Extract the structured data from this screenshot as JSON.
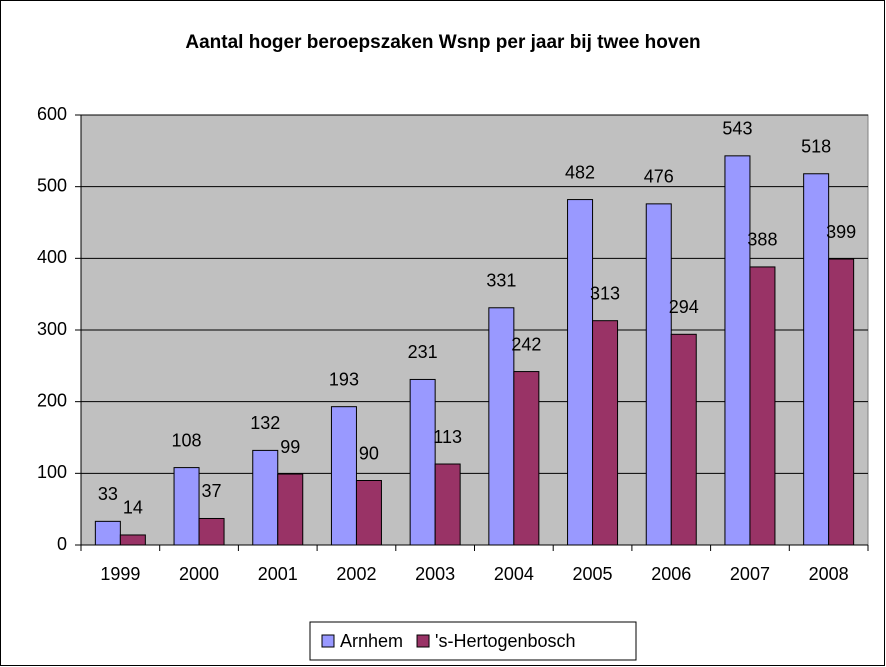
{
  "chart_data": {
    "type": "bar",
    "title": "Aantal hoger beroepszaken Wsnp per jaar bij twee hoven",
    "categories": [
      "1999",
      "2000",
      "2001",
      "2002",
      "2003",
      "2004",
      "2005",
      "2006",
      "2007",
      "2008"
    ],
    "series": [
      {
        "name": "Arnhem",
        "color": "#9999ff",
        "values": [
          33,
          108,
          132,
          193,
          231,
          331,
          482,
          476,
          543,
          518
        ]
      },
      {
        "name": "'s-Hertogenbosch",
        "color": "#993366",
        "values": [
          14,
          37,
          99,
          90,
          113,
          242,
          313,
          294,
          388,
          399
        ]
      }
    ],
    "ylim": [
      0,
      600
    ],
    "yticks": [
      0,
      100,
      200,
      300,
      400,
      500,
      600
    ],
    "grid": true,
    "legend": "bottom"
  }
}
